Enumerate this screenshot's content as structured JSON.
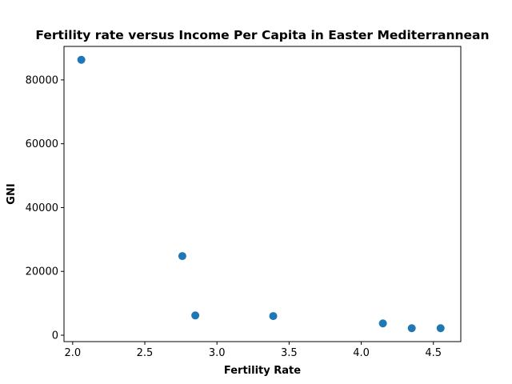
{
  "chart_data": {
    "type": "scatter",
    "title": "Fertility rate versus Income Per Capita in Easter Mediterrannean",
    "xlabel": "Fertility Rate",
    "ylabel": "GNI",
    "xlim": [
      1.94,
      4.69
    ],
    "ylim": [
      -2000,
      90500
    ],
    "xticks": [
      2.0,
      2.5,
      3.0,
      3.5,
      4.0,
      4.5
    ],
    "xtick_labels": [
      "2.0",
      "2.5",
      "3.0",
      "3.5",
      "4.0",
      "4.5"
    ],
    "yticks": [
      0,
      20000,
      40000,
      60000,
      80000
    ],
    "ytick_labels": [
      "0",
      "20000",
      "40000",
      "60000",
      "80000"
    ],
    "grid": false,
    "marker_color": "#1f77b4",
    "points": [
      {
        "x": 2.06,
        "y": 86300
      },
      {
        "x": 2.76,
        "y": 24800
      },
      {
        "x": 2.85,
        "y": 6200
      },
      {
        "x": 3.39,
        "y": 6000
      },
      {
        "x": 4.15,
        "y": 3700
      },
      {
        "x": 4.35,
        "y": 2200
      },
      {
        "x": 4.55,
        "y": 2200
      }
    ]
  }
}
